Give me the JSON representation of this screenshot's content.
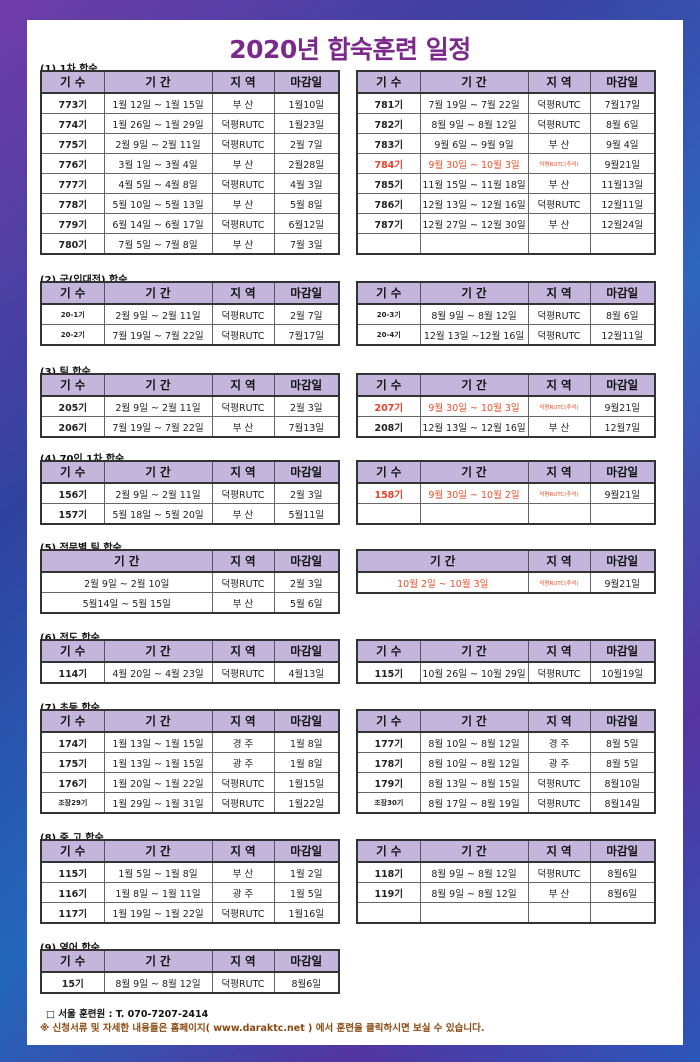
{
  "title": "2020년 합숙훈련 일정",
  "headers": {
    "no": "기 수",
    "period": "기 간",
    "region": "지 역",
    "deadline": "마감일"
  },
  "sections": [
    {
      "title": "(1) 1차 합숙",
      "left": [
        [
          "773기",
          "1월 12일 ~ 1월 15일",
          "부 산",
          "1월10일"
        ],
        [
          "774기",
          "1월 26일 ~ 1월 29일",
          "덕평RUTC",
          "1월23일"
        ],
        [
          "775기",
          "2월  9일 ~ 2월 11일",
          "덕평RUTC",
          "2월 7일"
        ],
        [
          "776기",
          "3월  1일 ~  3월  4일",
          "부 산",
          "2월28일"
        ],
        [
          "777기",
          "4월  5일 ~  4월  8일",
          "덕평RUTC",
          "4월 3일"
        ],
        [
          "778기",
          "5월 10일 ~ 5월 13일",
          "부 산",
          "5월 8일"
        ],
        [
          "779기",
          "6월 14일 ~ 6월 17일",
          "덕평RUTC",
          "6월12일"
        ],
        [
          "780기",
          "7월  5일 ~ 7월   8일",
          "부 산",
          "7월 3일"
        ]
      ],
      "right": [
        [
          "781기",
          "7월 19일  ~  7월 22일",
          "덕평RUTC",
          "7월17일"
        ],
        [
          "782기",
          "8월  9일  ~  8월 12일",
          "덕평RUTC",
          "8월 6일"
        ],
        [
          "783기",
          "9월  6일  ~  9월   9일",
          "부 산",
          "9월 4일"
        ],
        [
          "784기",
          "9월 30일 ~  10월  3일",
          "덕평RUTC(추석)",
          "9월21일",
          "hl"
        ],
        [
          "785기",
          "11월 15일 ~ 11월 18일",
          "부 산",
          "11월13일"
        ],
        [
          "786기",
          "12월 13일 ~ 12월 16일",
          "덕평RUTC",
          "12월11일"
        ],
        [
          "787기",
          "12월 27일 ~ 12월 30일",
          "부 산",
          "12월24일"
        ],
        [
          "",
          "",
          "",
          ""
        ]
      ]
    },
    {
      "title": "(2) 군(입대전) 합숙",
      "left": [
        [
          "20-1기",
          "2월 9일 ~ 2월 11일",
          "덕평RUTC",
          "2월  7일"
        ],
        [
          "20-2기",
          "7월 19일 ~ 7월 22일",
          "덕평RUTC",
          "7월17일"
        ]
      ],
      "right": [
        [
          "20-3기",
          "8월   9일 ~ 8월 12일",
          "덕평RUTC",
          "8월  6일"
        ],
        [
          "20-4기",
          "12월 13일 ~12월 16일",
          "덕평RUTC",
          "12월11일"
        ]
      ]
    },
    {
      "title": "(3) 팀 합숙",
      "left": [
        [
          "205기",
          "2월 9일 ~ 2월 11일",
          "덕평RUTC",
          "2월 3일"
        ],
        [
          "206기",
          "7월 19일 ~ 7월 22일",
          "부 산",
          "7월13일"
        ]
      ],
      "right": [
        [
          "207기",
          "9월  30일 ~ 10월  3일",
          "덕평RUTC(추석)",
          "9월21일",
          "hl"
        ],
        [
          "208기",
          "12월 13일 ~ 12월 16일",
          "부 산",
          "12월7일"
        ]
      ]
    },
    {
      "title": "(4) 70인 1차 합숙",
      "left": [
        [
          "156기",
          "2월 9일 ~ 2월 11일",
          "덕평RUTC",
          "2월 3일"
        ],
        [
          "157기",
          "5월 18일 ~ 5월 20일",
          "부 산",
          "5월11일"
        ]
      ],
      "right": [
        [
          "158기",
          "9월 30일 ~ 10월 2일",
          "덕평RUTC(추석)",
          "9월21일",
          "hl"
        ],
        [
          "",
          "",
          "",
          ""
        ]
      ]
    },
    {
      "title": "(5) 전문별 팀 합숙",
      "noKisu": true,
      "left": [
        [
          "2월 9일 ~ 2월 10일",
          "덕평RUTC",
          "2월 3일"
        ],
        [
          "5월14일 ~ 5월 15일",
          "부 산",
          "5월 6일"
        ]
      ],
      "right": [
        [
          "10월 2일 ~ 10월 3일",
          "덕평RUTC(추석)",
          "9월21일",
          "hl"
        ]
      ]
    },
    {
      "title": "(6) 전도 합숙",
      "left": [
        [
          "114기",
          "4월 20일 ~ 4월 23일",
          "덕평RUTC",
          "4월13일"
        ]
      ],
      "right": [
        [
          "115기",
          "10월 26일 ~ 10월 29일",
          "덕평RUTC",
          "10월19일"
        ]
      ]
    },
    {
      "title": "(7) 초등 합숙",
      "left": [
        [
          "174기",
          "1월 13일 ~ 1월 15일",
          "경 주",
          "1월 8일"
        ],
        [
          "175기",
          "1월 13일 ~ 1월 15일",
          "광 주",
          "1월 8일"
        ],
        [
          "176기",
          "1월 20일 ~ 1월 22일",
          "덕평RUTC",
          "1월15일"
        ],
        [
          "조장29기",
          "1월 29일 ~ 1월 31일",
          "덕평RUTC",
          "1월22일"
        ]
      ],
      "right": [
        [
          "177기",
          "8월 10일 ~ 8월 12일",
          "경 주",
          "8월 5일"
        ],
        [
          "178기",
          "8월 10일 ~ 8월 12일",
          "광 주",
          "8월 5일"
        ],
        [
          "179기",
          "8월 13일 ~ 8월 15일",
          "덕평RUTC",
          "8월10일"
        ],
        [
          "조장30기",
          "8월 17일 ~ 8월 19일",
          "덕평RUTC",
          "8월14일"
        ]
      ]
    },
    {
      "title": "(8) 중.고 합숙",
      "left": [
        [
          "115기",
          "1월  5일 ~ 1월   8일",
          "부 산",
          "1월 2일"
        ],
        [
          "116기",
          "1월  8일 ~ 1월 11일",
          "광 주",
          "1월 5일"
        ],
        [
          "117기",
          "1월 19일 ~ 1월 22일",
          "덕평RUTC",
          "1월16일"
        ]
      ],
      "right": [
        [
          "118기",
          "8월 9일 ~ 8월 12일",
          "덕평RUTC",
          "8월6일"
        ],
        [
          "119기",
          "8월 9일 ~ 8월 12일",
          "부 산",
          "8월6일"
        ],
        [
          "",
          "",
          "",
          ""
        ]
      ]
    },
    {
      "title": "(9) 영어 합숙",
      "left": [
        [
          "15기",
          "8월 9일 ~ 8월 12일",
          "덕평RUTC",
          "8월6일"
        ]
      ],
      "right": null
    }
  ],
  "footer": {
    "contact": "□ 서울 훈련원 : T.  070-7207-2414",
    "note": "※ 신청서류 및 자세한 내용들은 홈페이지( www.daraktc.net ) 에서 훈련을 클릭하시면 보실 수 있습니다."
  },
  "colors": {
    "title": "#7b2a8c",
    "header_bg": "#c4b5dc",
    "highlight": "#e8502a"
  }
}
